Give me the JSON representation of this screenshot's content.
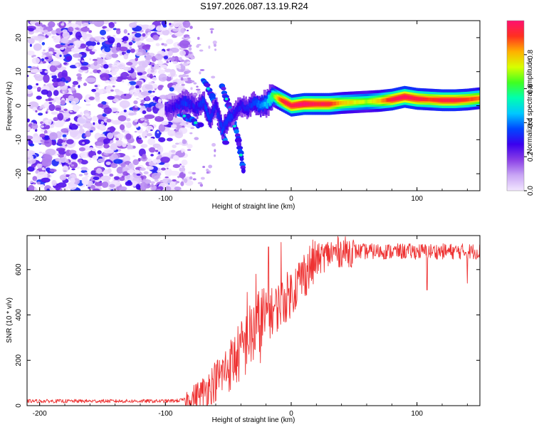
{
  "title": "S197.2026.087.13.19.R24",
  "chart_data": [
    {
      "type": "heatmap",
      "name": "spectrogram",
      "xlabel": "Height of straight line (km)",
      "ylabel": "Frequency (Hz)",
      "xlim": [
        -210,
        150
      ],
      "ylim": [
        -25,
        25
      ],
      "xticks": [
        -200,
        -100,
        0,
        100
      ],
      "yticks": [
        -20,
        -10,
        0,
        10,
        20
      ],
      "colorbar": {
        "label": "Normalized spectral amplitude",
        "range": [
          0,
          1
        ],
        "ticks": [
          0.0,
          0.2,
          0.4,
          0.6,
          0.8
        ],
        "colors": [
          "#f3e6ff",
          "#c9a6f5",
          "#8a3fe6",
          "#3b00ee",
          "#0047ff",
          "#00c8ff",
          "#00ffb0",
          "#40ff20",
          "#d8ff00",
          "#ffb000",
          "#ff3020",
          "#ff1070"
        ]
      },
      "noise_region_x": [
        -210,
        -82
      ],
      "signal_track": {
        "x": [
          -100,
          -90,
          -85,
          -80,
          -75,
          -70,
          -65,
          -60,
          -55,
          -50,
          -45,
          -40,
          -35,
          -30,
          -25,
          -20,
          -15,
          -10,
          -5,
          0,
          10,
          20,
          30,
          40,
          50,
          60,
          70,
          80,
          90,
          100,
          110,
          120,
          130,
          140,
          150
        ],
        "y": [
          -1,
          0,
          1,
          0.5,
          -1,
          1.5,
          -4,
          0,
          -7,
          -4,
          -2,
          0,
          -1,
          1,
          0,
          0.5,
          3,
          2,
          1,
          0,
          0.5,
          0.5,
          0.5,
          0.8,
          1,
          1.2,
          1.4,
          1.8,
          2.6,
          2,
          1.8,
          1.6,
          1.6,
          1.8,
          2.2
        ],
        "amplitude": [
          0.25,
          0.3,
          0.35,
          0.3,
          0.3,
          0.35,
          0.35,
          0.3,
          0.35,
          0.35,
          0.3,
          0.3,
          0.3,
          0.35,
          0.4,
          0.45,
          0.6,
          0.85,
          0.95,
          0.95,
          1.0,
          0.95,
          0.95,
          0.8,
          0.75,
          0.7,
          0.8,
          0.95,
          0.98,
          0.95,
          0.9,
          0.95,
          0.95,
          0.9,
          0.85
        ]
      },
      "descending_branches": [
        {
          "x": [
            -70,
            -62,
            -56,
            -52
          ],
          "y": [
            8,
            2,
            -6,
            -11
          ]
        },
        {
          "x": [
            -55,
            -48,
            -42,
            -38
          ],
          "y": [
            6,
            -2,
            -10,
            -19
          ]
        },
        {
          "x": [
            -90,
            -80,
            -72
          ],
          "y": [
            -2,
            -4,
            -6
          ]
        }
      ]
    },
    {
      "type": "line",
      "name": "snr",
      "xlabel": "Height of straight line (km)",
      "ylabel": "SNR (10 * v/v)",
      "xlim": [
        -210,
        150
      ],
      "ylim": [
        0,
        750
      ],
      "xticks": [
        -200,
        -100,
        0,
        100
      ],
      "yticks": [
        0,
        200,
        400,
        600
      ],
      "color": "#ee3333",
      "trend": {
        "x": [
          -210,
          -150,
          -100,
          -90,
          -80,
          -70,
          -60,
          -50,
          -40,
          -30,
          -20,
          -10,
          0,
          10,
          20,
          30,
          40,
          50,
          60,
          80,
          100,
          120,
          150
        ],
        "y": [
          20,
          20,
          20,
          22,
          30,
          60,
          110,
          170,
          240,
          320,
          390,
          440,
          500,
          580,
          640,
          670,
          680,
          680,
          680,
          680,
          680,
          680,
          680
        ]
      },
      "spikes": [
        {
          "x": -35,
          "y": 500
        },
        {
          "x": -28,
          "y": 580
        },
        {
          "x": -18,
          "y": 700
        },
        {
          "x": -8,
          "y": 720
        },
        {
          "x": 108,
          "y": 510
        },
        {
          "x": 140,
          "y": 540
        }
      ]
    }
  ]
}
